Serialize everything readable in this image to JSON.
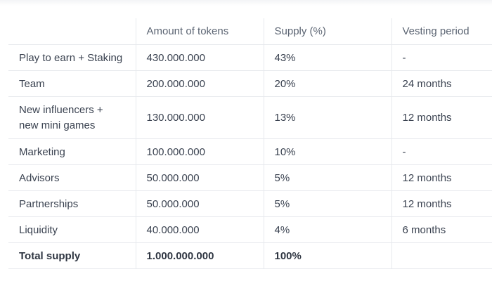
{
  "table": {
    "headers": [
      "",
      "Amount of tokens",
      "Supply (%)",
      "Vesting period"
    ],
    "rows": [
      {
        "label": "Play to earn + Staking",
        "amount": "430.000.000",
        "supply": "43%",
        "vesting": "-"
      },
      {
        "label": "Team",
        "amount": "200.000.000",
        "supply": "20%",
        "vesting": "24 months"
      },
      {
        "label_line1": "New influencers +",
        "label_line2": "new mini games",
        "amount": "130.000.000",
        "supply": "13%",
        "vesting": "12 months"
      },
      {
        "label": "Marketing",
        "amount": "100.000.000",
        "supply": "10%",
        "vesting": "-"
      },
      {
        "label": "Advisors",
        "amount": "50.000.000",
        "supply": "5%",
        "vesting": "12 months"
      },
      {
        "label": "Partnerships",
        "amount": "50.000.000",
        "supply": "5%",
        "vesting": "12 months"
      },
      {
        "label": "Liquidity",
        "amount": "40.000.000",
        "supply": "4%",
        "vesting": "6 months"
      }
    ],
    "total": {
      "label": "Total supply",
      "amount": "1.000.000.000",
      "supply": "100%",
      "vesting": ""
    }
  }
}
